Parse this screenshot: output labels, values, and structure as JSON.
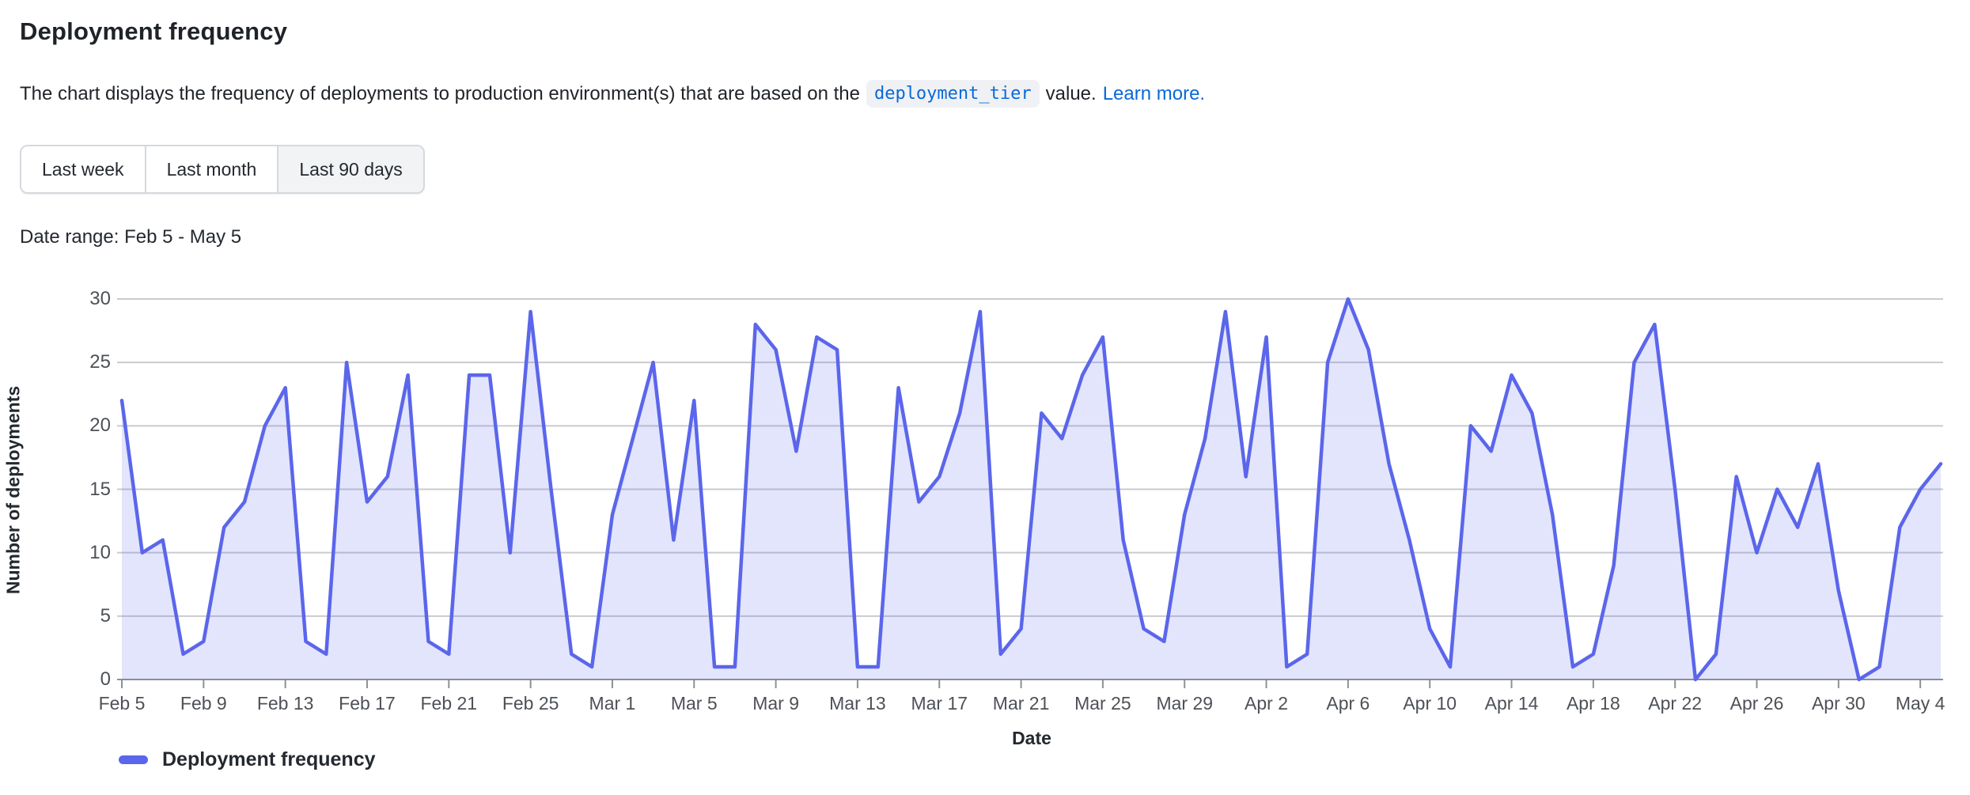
{
  "header": {
    "title": "Deployment frequency",
    "description_before_code": "The chart displays the frequency of deployments to production environment(s) that are based on the",
    "code_token": "deployment_tier",
    "description_after_code": "value.",
    "learn_more": "Learn more."
  },
  "range_buttons": {
    "options": [
      "Last week",
      "Last month",
      "Last 90 days"
    ],
    "selected": "Last 90 days"
  },
  "date_range_label": "Date range: Feb 5 - May 5",
  "legend": {
    "label": "Deployment frequency"
  },
  "colors": {
    "line": "#5B66EB",
    "fill": "rgba(91,102,235,0.17)",
    "gridline": "#c9cbcd",
    "axis_line": "#8c9196",
    "link": "#0969da"
  },
  "chart_data": {
    "type": "area",
    "title": "Deployment frequency",
    "xlabel": "Date",
    "ylabel": "Number of deployments",
    "ylim": [
      0,
      30
    ],
    "grid": true,
    "legend_position": "bottom-left",
    "y_ticks": [
      0,
      5,
      10,
      15,
      20,
      25,
      30
    ],
    "x_start_date": "Feb 5",
    "x_end_date": "May 5",
    "x_tick_labels": [
      "Feb 5",
      "Feb 9",
      "Feb 13",
      "Feb 17",
      "Feb 21",
      "Feb 25",
      "Mar 1",
      "Mar 5",
      "Mar 9",
      "Mar 13",
      "Mar 17",
      "Mar 21",
      "Mar 25",
      "Mar 29",
      "Apr 2",
      "Apr 6",
      "Apr 10",
      "Apr 14",
      "Apr 18",
      "Apr 22",
      "Apr 26",
      "Apr 30",
      "May 4"
    ],
    "x_tick_day_indices": [
      0,
      4,
      8,
      12,
      16,
      20,
      24,
      28,
      32,
      36,
      40,
      44,
      48,
      52,
      56,
      60,
      64,
      68,
      72,
      76,
      80,
      84,
      88
    ],
    "series": [
      {
        "name": "Deployment frequency",
        "values": [
          22,
          10,
          11,
          2,
          3,
          12,
          14,
          20,
          23,
          3,
          2,
          25,
          14,
          16,
          24,
          3,
          2,
          24,
          24,
          10,
          29,
          15,
          2,
          1,
          13,
          19,
          25,
          11,
          22,
          1,
          1,
          28,
          26,
          18,
          27,
          26,
          1,
          1,
          23,
          14,
          16,
          21,
          29,
          2,
          4,
          21,
          19,
          24,
          27,
          11,
          4,
          3,
          13,
          19,
          29,
          16,
          27,
          1,
          2,
          25,
          30,
          26,
          17,
          11,
          4,
          1,
          20,
          18,
          24,
          21,
          13,
          1,
          2,
          9,
          25,
          28,
          15,
          0,
          2,
          16,
          10,
          15,
          12,
          17,
          7,
          0,
          1,
          12,
          15,
          17
        ]
      }
    ]
  }
}
